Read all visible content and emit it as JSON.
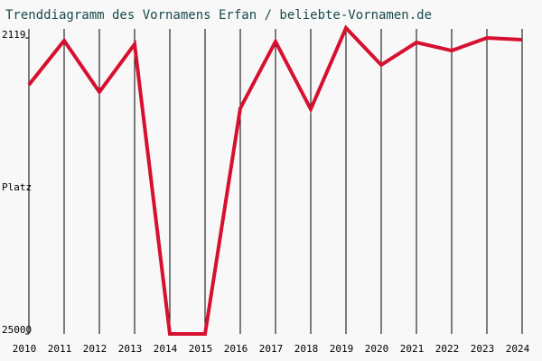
{
  "chart_data": {
    "type": "line",
    "title": "Trenddiagramm des Vornamens Erfan / beliebte-Vornamen.de",
    "ylabel": "Platz",
    "x": [
      2010,
      2011,
      2012,
      2013,
      2014,
      2015,
      2016,
      2017,
      2018,
      2019,
      2020,
      2021,
      2022,
      2023,
      2024
    ],
    "series": [
      {
        "color": "#d7102f",
        "values": [
          5750,
          2330,
          6300,
          2610,
          25000,
          25000,
          7560,
          2400,
          7630,
          1350,
          4210,
          2470,
          3100,
          2119,
          2260
        ]
      }
    ],
    "xlim": [
      2010,
      2024
    ],
    "xticks": [
      2010,
      2011,
      2012,
      2013,
      2014,
      2015,
      2016,
      2017,
      2018,
      2019,
      2020,
      2021,
      2022,
      2023,
      2024
    ],
    "ylim": [
      2119,
      25000
    ],
    "yticks": [
      2119,
      25000
    ],
    "y_inverted": true,
    "grid": true
  }
}
